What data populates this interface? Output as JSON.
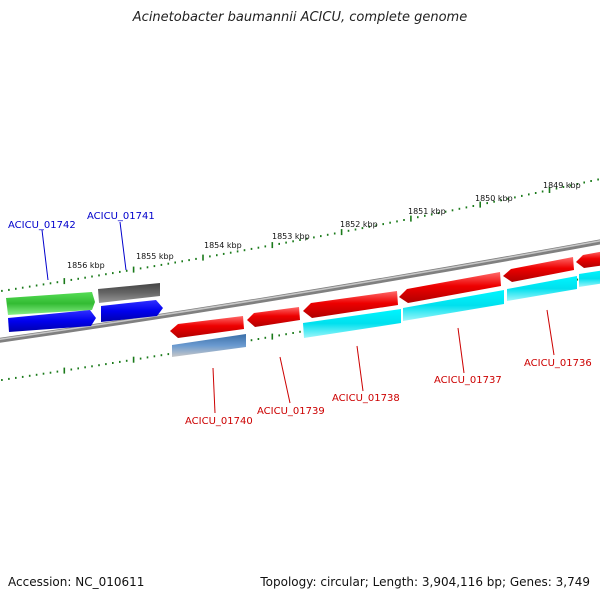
{
  "title": "Acinetobacter baumannii ACICU, complete genome",
  "footer": {
    "accession": "Accession: NC_010611",
    "stats": "Topology: circular; Length: 3,904,116 bp; Genes: 3,749"
  },
  "scale_labels": [
    "1856 kbp",
    "1855 kbp",
    "1854 kbp",
    "1853 kbp",
    "1852 kbp",
    "1851 kbp",
    "1850 kbp",
    "1849 kbp"
  ],
  "genes": [
    {
      "name": "ACICU_01742",
      "color": "#0000cc"
    },
    {
      "name": "ACICU_01741",
      "color": "#0000cc"
    },
    {
      "name": "ACICU_01740",
      "color": "#cc0000"
    },
    {
      "name": "ACICU_01739",
      "color": "#cc0000"
    },
    {
      "name": "ACICU_01738",
      "color": "#cc0000"
    },
    {
      "name": "ACICU_01737",
      "color": "#cc0000"
    },
    {
      "name": "ACICU_01736",
      "color": "#cc0000"
    }
  ],
  "colors": {
    "backbone": "#888888",
    "tick": "#1a7a1a",
    "forward_cds": "#ee1111",
    "blue_cds": "#0000ee",
    "green_cds": "#33bb33",
    "gray_cds": "#666666",
    "cyan_cds": "#00e5ee",
    "steel_cds": "#4a7fb0"
  }
}
